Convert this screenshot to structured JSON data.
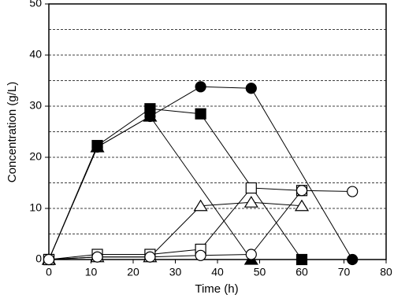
{
  "chart_data": {
    "type": "line",
    "xlabel": "Time (h)",
    "ylabel": "Concentration (g/L)",
    "xlim": [
      0,
      80
    ],
    "xticks": [
      0,
      10,
      20,
      30,
      40,
      50,
      60,
      70,
      80
    ],
    "ylim": [
      0,
      50
    ],
    "yticks": [
      0,
      10,
      20,
      30,
      40,
      50
    ],
    "grid": true,
    "grid_lines": [
      5,
      10,
      15,
      20,
      25,
      30,
      35,
      40,
      45
    ],
    "series": [
      {
        "marker": "circle",
        "filled": true,
        "color": "#000000",
        "x": [
          0,
          11.5,
          24,
          36,
          48,
          72
        ],
        "values": [
          0,
          22,
          28,
          33.8,
          33.5,
          0
        ]
      },
      {
        "marker": "square",
        "filled": true,
        "color": "#000000",
        "x": [
          0,
          11.5,
          24,
          36,
          60
        ],
        "values": [
          0,
          22.3,
          29.5,
          28.5,
          0
        ]
      },
      {
        "marker": "triangle",
        "filled": true,
        "color": "#000000",
        "x": [
          0,
          11.5,
          24,
          48
        ],
        "values": [
          0,
          22,
          28,
          0
        ]
      },
      {
        "marker": "triangle",
        "filled": false,
        "color": "#000000",
        "x": [
          0,
          11.5,
          24,
          36,
          48,
          60
        ],
        "values": [
          0,
          0.5,
          0.5,
          10.5,
          11.2,
          10.5
        ]
      },
      {
        "marker": "square",
        "filled": false,
        "color": "#000000",
        "x": [
          0,
          11.5,
          24,
          36,
          48,
          60
        ],
        "values": [
          0,
          1,
          1,
          2,
          14,
          13.5
        ]
      },
      {
        "marker": "circle",
        "filled": false,
        "color": "#000000",
        "x": [
          0,
          11.5,
          24,
          36,
          48,
          60,
          72
        ],
        "values": [
          0,
          0.5,
          0.5,
          0.8,
          1,
          13.5,
          13.3
        ]
      }
    ]
  }
}
